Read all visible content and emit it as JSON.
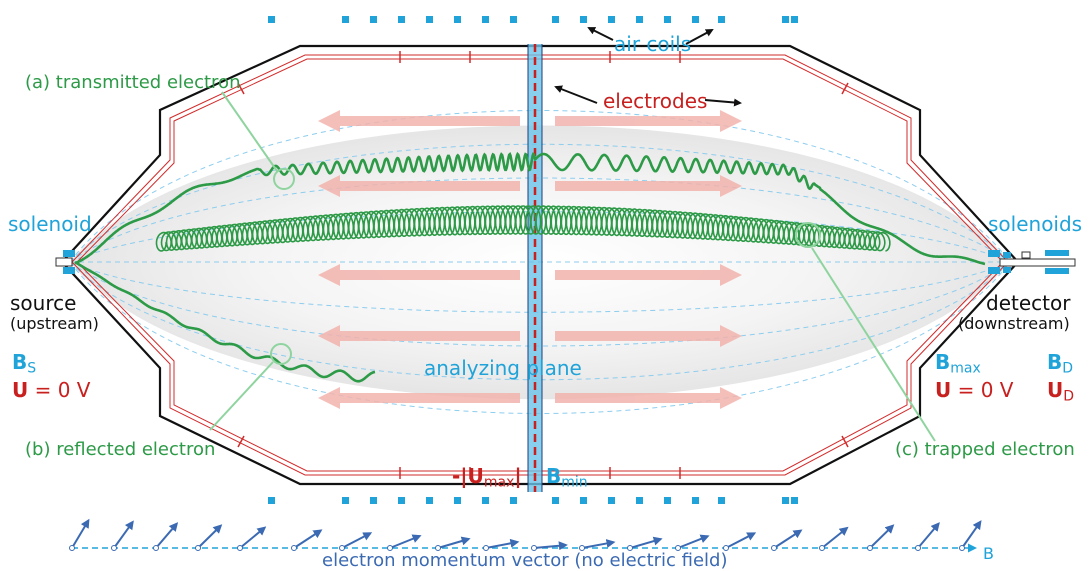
{
  "labels": {
    "transmitted": "(a) transmitted electron",
    "reflected": "(b) reflected electron",
    "trapped": "(c) trapped electron",
    "air_coils": "air coils",
    "electrodes": "electrodes",
    "solenoid_left": "solenoid",
    "solenoids_right": "solenoids",
    "source": "source",
    "upstream": "(upstream)",
    "detector": "detector",
    "downstream": "(downstream)",
    "analyzing_plane": "analyzing plane",
    "momentum_vector": "electron momentum vector (no electric field)",
    "B_axis": "B"
  },
  "symbols": {
    "B": "B",
    "U": "U",
    "sub_S": "S",
    "sub_max": "max",
    "sub_D": "D",
    "sub_min": "min",
    "eq_zero": " = 0 V",
    "umax_prefix": "-|",
    "umax_suffix": "|"
  },
  "colors": {
    "green": "#2c9a46",
    "cyan": "#1fa3d8",
    "red": "#c8201f",
    "navy": "#3b6ab3",
    "pink": "#f2b3ad"
  }
}
